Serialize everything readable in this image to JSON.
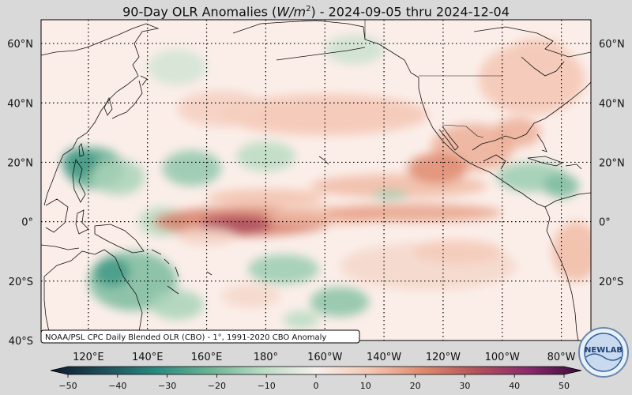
{
  "title": {
    "prefix": "90-Day OLR Anomalies (",
    "unit_base": "W/m",
    "unit_exp": "2",
    "suffix": ") - 2024-09-05 thru 2024-12-04"
  },
  "lat_labels": [
    "60°N",
    "40°N",
    "20°N",
    "0°",
    "20°S",
    "40°S"
  ],
  "lat_values": [
    60,
    40,
    20,
    0,
    -20,
    -40
  ],
  "lon_labels": [
    "120°E",
    "140°E",
    "160°E",
    "180°",
    "160°W",
    "140°W",
    "120°W",
    "100°W",
    "80°W"
  ],
  "lon_values": [
    120,
    140,
    160,
    180,
    200,
    220,
    240,
    260,
    280
  ],
  "map_extent": {
    "lon_min": 104,
    "lon_max": 290,
    "lat_min": -40,
    "lat_max": 68
  },
  "credit": "NOAA/PSL CPC Daily Blended OLR (CBO) - 1°, 1991-2020 CBO Anomaly",
  "logo": {
    "text": "NEWLAB",
    "icon": "noaa-psl-logo-icon"
  },
  "colorbar": {
    "min": -50,
    "max": 50,
    "ticks": [
      "−50",
      "−40",
      "−30",
      "−20",
      "−10",
      "0",
      "10",
      "20",
      "30",
      "40",
      "50"
    ],
    "tick_values": [
      -50,
      -40,
      -30,
      -20,
      -10,
      0,
      10,
      20,
      30,
      40,
      50
    ],
    "stops": [
      "#0d1b2e",
      "#1f4e5a",
      "#2a8a80",
      "#6bb394",
      "#b9dcc2",
      "#f6f0ec",
      "#f4c7b4",
      "#df8a6e",
      "#b5535a",
      "#8a2a6c",
      "#3a0b3a"
    ]
  },
  "anomalies": [
    {
      "lon": 122,
      "lat": 18,
      "rx": 10,
      "ry": 7,
      "v": -22
    },
    {
      "lon": 117,
      "lat": 20,
      "rx": 6,
      "ry": 5,
      "v": -26
    },
    {
      "lon": 130,
      "lat": 15,
      "rx": 9,
      "ry": 6,
      "v": -12
    },
    {
      "lon": 155,
      "lat": 18,
      "rx": 10,
      "ry": 6,
      "v": -15
    },
    {
      "lon": 180,
      "lat": 22,
      "rx": 10,
      "ry": 5,
      "v": -10
    },
    {
      "lon": 145,
      "lat": 0,
      "rx": 8,
      "ry": 5,
      "v": -10
    },
    {
      "lon": 172,
      "lat": 0,
      "rx": 30,
      "ry": 5,
      "v": 22
    },
    {
      "lon": 170,
      "lat": -1,
      "rx": 12,
      "ry": 3,
      "v": 32
    },
    {
      "lon": 200,
      "lat": 2,
      "rx": 20,
      "ry": 3,
      "v": 12
    },
    {
      "lon": 230,
      "lat": 3,
      "rx": 30,
      "ry": 3,
      "v": 16
    },
    {
      "lon": 225,
      "lat": 12,
      "rx": 30,
      "ry": 4,
      "v": 12
    },
    {
      "lon": 180,
      "lat": 8,
      "rx": 20,
      "ry": 3,
      "v": 11
    },
    {
      "lon": 222,
      "lat": 9,
      "rx": 6,
      "ry": 1.5,
      "v": -14
    },
    {
      "lon": 200,
      "lat": 36,
      "rx": 35,
      "ry": 7,
      "v": 10
    },
    {
      "lon": 165,
      "lat": 38,
      "rx": 15,
      "ry": 6,
      "v": 8
    },
    {
      "lon": 250,
      "lat": 25,
      "rx": 14,
      "ry": 8,
      "v": 14
    },
    {
      "lon": 238,
      "lat": 18,
      "rx": 10,
      "ry": 5,
      "v": 20
    },
    {
      "lon": 265,
      "lat": 30,
      "rx": 8,
      "ry": 5,
      "v": 14
    },
    {
      "lon": 270,
      "lat": 15,
      "rx": 12,
      "ry": 5,
      "v": -14
    },
    {
      "lon": 280,
      "lat": 12,
      "rx": 6,
      "ry": 4,
      "v": -18
    },
    {
      "lon": 270,
      "lat": 48,
      "rx": 18,
      "ry": 12,
      "v": 10
    },
    {
      "lon": 285,
      "lat": -10,
      "rx": 8,
      "ry": 10,
      "v": 12
    },
    {
      "lon": 135,
      "lat": -20,
      "rx": 15,
      "ry": 10,
      "v": -18
    },
    {
      "lon": 128,
      "lat": -17,
      "rx": 6,
      "ry": 5,
      "v": -26
    },
    {
      "lon": 150,
      "lat": -28,
      "rx": 9,
      "ry": 5,
      "v": -12
    },
    {
      "lon": 186,
      "lat": -16,
      "rx": 12,
      "ry": 5,
      "v": -14
    },
    {
      "lon": 205,
      "lat": -27,
      "rx": 10,
      "ry": 5,
      "v": -16
    },
    {
      "lon": 192,
      "lat": -33,
      "rx": 6,
      "ry": 3,
      "v": -10
    },
    {
      "lon": 175,
      "lat": -25,
      "rx": 10,
      "ry": 4,
      "v": 6
    },
    {
      "lon": 235,
      "lat": -15,
      "rx": 30,
      "ry": 8,
      "v": 6
    },
    {
      "lon": 245,
      "lat": -10,
      "rx": 15,
      "ry": 4,
      "v": 9
    },
    {
      "lon": 150,
      "lat": 52,
      "rx": 10,
      "ry": 6,
      "v": -6
    },
    {
      "lon": 210,
      "lat": 58,
      "rx": 10,
      "ry": 5,
      "v": -7
    },
    {
      "lon": 272,
      "lat": 56,
      "rx": 10,
      "ry": 6,
      "v": 9
    },
    {
      "lon": 160,
      "lat": -5,
      "rx": 10,
      "ry": 3,
      "v": 7
    }
  ]
}
